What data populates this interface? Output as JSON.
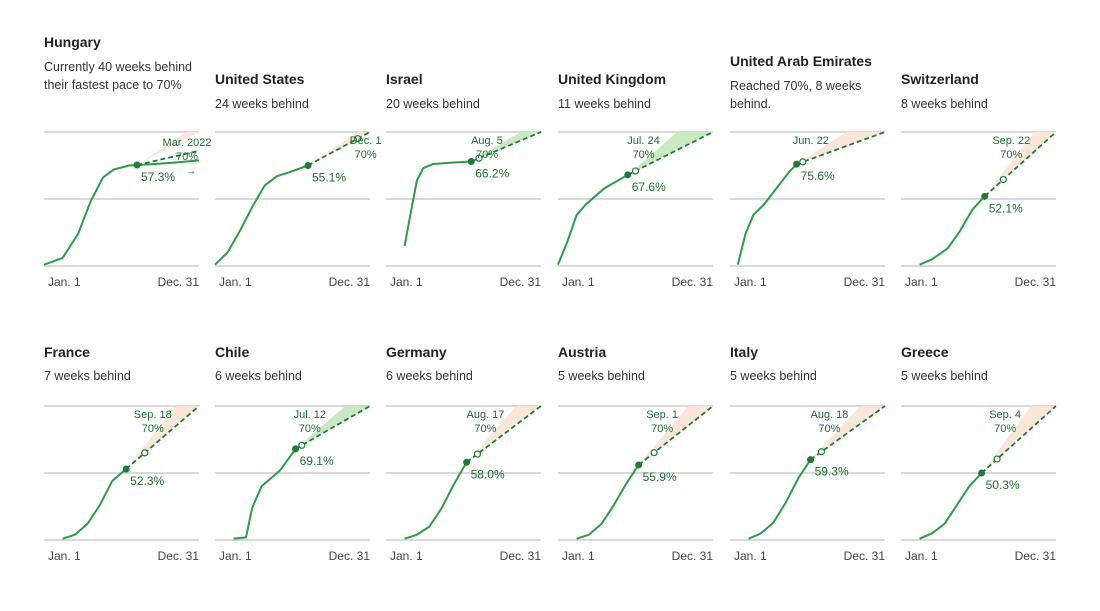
{
  "colors": {
    "line": "#2e9b47",
    "dark_green": "#1f7a36",
    "text_green": "#1d6f31",
    "cone_orange": "#fbe6d8",
    "cone_green": "#c6e8c0",
    "grid": "#9a9a9a"
  },
  "chart_data": [
    {
      "type": "line",
      "title": "Hungary",
      "subtitle": "Currently 40 weeks behind their fastest pace to 70%",
      "xlabel_start": "Jan. 1",
      "xlabel_end": "Dec. 31",
      "ylim": [
        0,
        100
      ],
      "series": [
        {
          "name": "actual",
          "x": [
            0,
            0.12,
            0.22,
            0.3,
            0.38,
            0.45,
            0.55,
            0.7,
            0.82,
            0.92,
            1.0
          ],
          "y": [
            0.01,
            0.06,
            0.24,
            0.48,
            0.66,
            0.72,
            0.75,
            0.76,
            0.77,
            0.78,
            0.788
          ]
        }
      ],
      "current": {
        "x": 0.6,
        "value": "57.3%"
      },
      "target": {
        "date": "Mar. 2022",
        "value": "70%",
        "arrow": "→"
      },
      "cone": "orange",
      "projected_end_y": 0.86
    },
    {
      "type": "line",
      "title": "United States",
      "subtitle": "24 weeks behind",
      "xlabel_start": "Jan. 1",
      "xlabel_end": "Dec. 31",
      "series": [
        {
          "name": "actual",
          "x": [
            0,
            0.08,
            0.16,
            0.24,
            0.32,
            0.4,
            0.48,
            0.6
          ],
          "y": [
            0.01,
            0.1,
            0.26,
            0.44,
            0.6,
            0.67,
            0.7,
            0.75
          ]
        }
      ],
      "current": {
        "x": 0.6,
        "value": "55.1%"
      },
      "target": {
        "date": "Dec. 1",
        "value": "70%",
        "x": 0.92
      },
      "cone": "orange"
    },
    {
      "type": "line",
      "title": "Israel",
      "subtitle": "20 weeks behind",
      "xlabel_start": "Jan. 1",
      "xlabel_end": "Dec. 31",
      "series": [
        {
          "name": "actual",
          "x": [
            0.12,
            0.16,
            0.2,
            0.24,
            0.3,
            0.4,
            0.55
          ],
          "y": [
            0.15,
            0.4,
            0.64,
            0.73,
            0.76,
            0.77,
            0.78
          ]
        }
      ],
      "current": {
        "x": 0.55,
        "value": "66.2%"
      },
      "target": {
        "date": "Aug. 5",
        "value": "70%",
        "x": 0.6
      },
      "cone": "green"
    },
    {
      "type": "line",
      "title": "United Kingdom",
      "subtitle": "11 weeks behind",
      "xlabel_start": "Jan. 1",
      "xlabel_end": "Dec. 31",
      "series": [
        {
          "name": "actual",
          "x": [
            0,
            0.06,
            0.12,
            0.18,
            0.22,
            0.3,
            0.45
          ],
          "y": [
            0.01,
            0.18,
            0.38,
            0.46,
            0.5,
            0.58,
            0.68
          ]
        }
      ],
      "current": {
        "x": 0.45,
        "value": "67.6%"
      },
      "target": {
        "date": "Jul. 24",
        "value": "70%",
        "x": 0.5
      },
      "cone": "green"
    },
    {
      "type": "line",
      "title": "United Arab Emirates",
      "subtitle": "Reached 70%, 8 weeks behind.",
      "xlabel_start": "Jan. 1",
      "xlabel_end": "Dec. 31",
      "series": [
        {
          "name": "actual",
          "x": [
            0.05,
            0.1,
            0.15,
            0.22,
            0.3,
            0.38,
            0.43
          ],
          "y": [
            0.01,
            0.24,
            0.38,
            0.46,
            0.58,
            0.7,
            0.76
          ]
        }
      ],
      "current": {
        "x": 0.43,
        "value": "75.6%"
      },
      "target": {
        "date": "Jun. 22",
        "value": "",
        "x": 0.47
      },
      "cone": "orange"
    },
    {
      "type": "line",
      "title": "Switzerland",
      "subtitle": "8 weeks behind",
      "xlabel_start": "Jan. 1",
      "xlabel_end": "Dec. 31",
      "series": [
        {
          "name": "actual",
          "x": [
            0.12,
            0.2,
            0.3,
            0.38,
            0.46,
            0.54
          ],
          "y": [
            0.01,
            0.05,
            0.13,
            0.26,
            0.42,
            0.52
          ]
        }
      ],
      "current": {
        "x": 0.54,
        "value": "52.1%"
      },
      "target": {
        "date": "Sep. 22",
        "value": "70%",
        "x": 0.66
      },
      "cone": "orange"
    },
    {
      "type": "line",
      "title": "France",
      "subtitle": "7 weeks behind",
      "xlabel_start": "Jan. 1",
      "xlabel_end": "Dec. 31",
      "series": [
        {
          "name": "actual",
          "x": [
            0.12,
            0.2,
            0.28,
            0.36,
            0.44,
            0.53
          ],
          "y": [
            0.01,
            0.04,
            0.12,
            0.26,
            0.44,
            0.53
          ]
        }
      ],
      "current": {
        "x": 0.53,
        "value": "52.3%"
      },
      "target": {
        "date": "Sep. 18",
        "value": "70%",
        "x": 0.65
      },
      "cone": "orange"
    },
    {
      "type": "line",
      "title": "Chile",
      "subtitle": "6 weeks behind",
      "xlabel_start": "Jan. 1",
      "xlabel_end": "Dec. 31",
      "series": [
        {
          "name": "actual",
          "x": [
            0.12,
            0.2,
            0.24,
            0.3,
            0.36,
            0.42,
            0.52
          ],
          "y": [
            0.01,
            0.02,
            0.24,
            0.4,
            0.46,
            0.52,
            0.68
          ]
        }
      ],
      "current": {
        "x": 0.52,
        "value": "69.1%"
      },
      "target": {
        "date": "Jul. 12",
        "value": "70%",
        "x": 0.56
      },
      "cone": "green"
    },
    {
      "type": "line",
      "title": "Germany",
      "subtitle": "6 weeks behind",
      "xlabel_start": "Jan. 1",
      "xlabel_end": "Dec. 31",
      "series": [
        {
          "name": "actual",
          "x": [
            0.12,
            0.2,
            0.28,
            0.36,
            0.44,
            0.52
          ],
          "y": [
            0.01,
            0.04,
            0.1,
            0.24,
            0.42,
            0.58
          ]
        }
      ],
      "current": {
        "x": 0.52,
        "value": "58.0%"
      },
      "target": {
        "date": "Aug. 17",
        "value": "70%",
        "x": 0.59
      },
      "cone": "orange"
    },
    {
      "type": "line",
      "title": "Austria",
      "subtitle": "5 weeks behind",
      "xlabel_start": "Jan. 1",
      "xlabel_end": "Dec. 31",
      "series": [
        {
          "name": "actual",
          "x": [
            0.12,
            0.2,
            0.28,
            0.36,
            0.44,
            0.52
          ],
          "y": [
            0.01,
            0.04,
            0.12,
            0.26,
            0.42,
            0.56
          ]
        }
      ],
      "current": {
        "x": 0.52,
        "value": "55.9%"
      },
      "target": {
        "date": "Sep. 1",
        "value": "70%",
        "x": 0.62
      },
      "cone": "orange"
    },
    {
      "type": "line",
      "title": "Italy",
      "subtitle": "5 weeks behind",
      "xlabel_start": "Jan. 1",
      "xlabel_end": "Dec. 31",
      "series": [
        {
          "name": "actual",
          "x": [
            0.12,
            0.2,
            0.28,
            0.36,
            0.44,
            0.52
          ],
          "y": [
            0.01,
            0.05,
            0.13,
            0.28,
            0.46,
            0.6
          ]
        }
      ],
      "current": {
        "x": 0.52,
        "value": "59.3%"
      },
      "target": {
        "date": "Aug. 18",
        "value": "70%",
        "x": 0.59
      },
      "cone": "orange"
    },
    {
      "type": "line",
      "title": "Greece",
      "subtitle": "5 weeks behind",
      "xlabel_start": "Jan. 1",
      "xlabel_end": "Dec. 31",
      "series": [
        {
          "name": "actual",
          "x": [
            0.12,
            0.2,
            0.28,
            0.36,
            0.44,
            0.52
          ],
          "y": [
            0.01,
            0.05,
            0.12,
            0.26,
            0.4,
            0.5
          ]
        }
      ],
      "current": {
        "x": 0.52,
        "value": "50.3%"
      },
      "target": {
        "date": "Sep. 4",
        "value": "70%",
        "x": 0.62
      },
      "cone": "orange"
    }
  ]
}
